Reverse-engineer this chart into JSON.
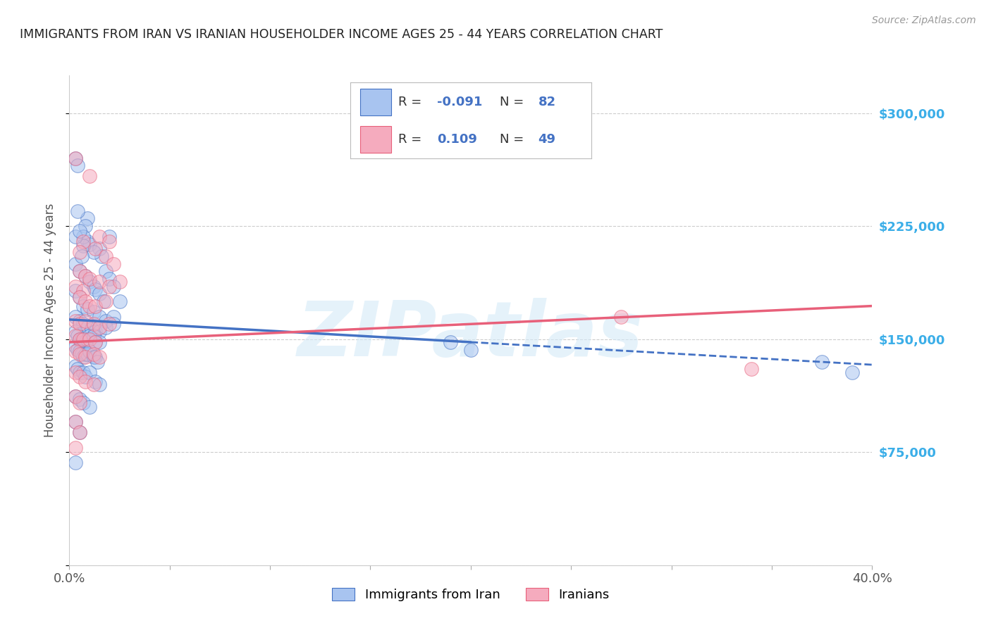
{
  "title": "IMMIGRANTS FROM IRAN VS IRANIAN HOUSEHOLDER INCOME AGES 25 - 44 YEARS CORRELATION CHART",
  "source": "Source: ZipAtlas.com",
  "ylabel": "Householder Income Ages 25 - 44 years",
  "xlim": [
    0.0,
    0.4
  ],
  "ylim": [
    0,
    325000
  ],
  "yticks": [
    0,
    75000,
    150000,
    225000,
    300000
  ],
  "ytick_labels": [
    "",
    "$75,000",
    "$150,000",
    "$225,000",
    "$300,000"
  ],
  "xticks": [
    0.0,
    0.05,
    0.1,
    0.15,
    0.2,
    0.25,
    0.3,
    0.35,
    0.4
  ],
  "color_blue": "#A8C4F0",
  "color_pink": "#F5ABBE",
  "line_color_blue": "#4472C4",
  "line_color_pink": "#E8607A",
  "right_tick_color": "#3BAEE8",
  "blue_line_solid": [
    [
      0.0,
      163000
    ],
    [
      0.2,
      148000
    ]
  ],
  "blue_line_dashed": [
    [
      0.2,
      148000
    ],
    [
      0.4,
      133000
    ]
  ],
  "pink_line": [
    [
      0.0,
      148000
    ],
    [
      0.4,
      172000
    ]
  ],
  "blue_scatter": [
    [
      0.003,
      270000
    ],
    [
      0.004,
      265000
    ],
    [
      0.009,
      230000
    ],
    [
      0.009,
      215000
    ],
    [
      0.01,
      213000
    ],
    [
      0.015,
      210000
    ],
    [
      0.02,
      218000
    ],
    [
      0.016,
      205000
    ],
    [
      0.008,
      225000
    ],
    [
      0.012,
      208000
    ],
    [
      0.018,
      195000
    ],
    [
      0.004,
      235000
    ],
    [
      0.007,
      218000
    ],
    [
      0.007,
      212000
    ],
    [
      0.003,
      218000
    ],
    [
      0.005,
      222000
    ],
    [
      0.003,
      200000
    ],
    [
      0.006,
      205000
    ],
    [
      0.005,
      195000
    ],
    [
      0.008,
      192000
    ],
    [
      0.01,
      188000
    ],
    [
      0.012,
      185000
    ],
    [
      0.013,
      183000
    ],
    [
      0.015,
      180000
    ],
    [
      0.017,
      175000
    ],
    [
      0.02,
      190000
    ],
    [
      0.022,
      185000
    ],
    [
      0.003,
      182000
    ],
    [
      0.005,
      178000
    ],
    [
      0.007,
      172000
    ],
    [
      0.009,
      170000
    ],
    [
      0.012,
      168000
    ],
    [
      0.015,
      165000
    ],
    [
      0.018,
      162000
    ],
    [
      0.022,
      165000
    ],
    [
      0.025,
      175000
    ],
    [
      0.003,
      165000
    ],
    [
      0.005,
      162000
    ],
    [
      0.007,
      160000
    ],
    [
      0.009,
      158000
    ],
    [
      0.011,
      157000
    ],
    [
      0.013,
      155000
    ],
    [
      0.015,
      155000
    ],
    [
      0.018,
      158000
    ],
    [
      0.022,
      160000
    ],
    [
      0.003,
      155000
    ],
    [
      0.004,
      152000
    ],
    [
      0.005,
      150000
    ],
    [
      0.006,
      150000
    ],
    [
      0.007,
      148000
    ],
    [
      0.008,
      148000
    ],
    [
      0.009,
      150000
    ],
    [
      0.01,
      152000
    ],
    [
      0.012,
      152000
    ],
    [
      0.013,
      148000
    ],
    [
      0.015,
      148000
    ],
    [
      0.003,
      145000
    ],
    [
      0.004,
      143000
    ],
    [
      0.005,
      142000
    ],
    [
      0.006,
      140000
    ],
    [
      0.007,
      138000
    ],
    [
      0.008,
      140000
    ],
    [
      0.009,
      140000
    ],
    [
      0.01,
      142000
    ],
    [
      0.012,
      138000
    ],
    [
      0.013,
      138000
    ],
    [
      0.014,
      135000
    ],
    [
      0.003,
      132000
    ],
    [
      0.004,
      130000
    ],
    [
      0.005,
      128000
    ],
    [
      0.007,
      128000
    ],
    [
      0.008,
      125000
    ],
    [
      0.01,
      128000
    ],
    [
      0.013,
      122000
    ],
    [
      0.015,
      120000
    ],
    [
      0.003,
      112000
    ],
    [
      0.005,
      110000
    ],
    [
      0.007,
      108000
    ],
    [
      0.01,
      105000
    ],
    [
      0.003,
      95000
    ],
    [
      0.005,
      88000
    ],
    [
      0.003,
      68000
    ],
    [
      0.19,
      148000
    ],
    [
      0.2,
      143000
    ],
    [
      0.375,
      135000
    ],
    [
      0.39,
      128000
    ]
  ],
  "pink_scatter": [
    [
      0.003,
      270000
    ],
    [
      0.01,
      258000
    ],
    [
      0.015,
      218000
    ],
    [
      0.02,
      215000
    ],
    [
      0.007,
      215000
    ],
    [
      0.013,
      210000
    ],
    [
      0.005,
      208000
    ],
    [
      0.018,
      205000
    ],
    [
      0.022,
      200000
    ],
    [
      0.005,
      195000
    ],
    [
      0.008,
      192000
    ],
    [
      0.01,
      190000
    ],
    [
      0.015,
      188000
    ],
    [
      0.003,
      185000
    ],
    [
      0.007,
      182000
    ],
    [
      0.02,
      185000
    ],
    [
      0.025,
      188000
    ],
    [
      0.005,
      178000
    ],
    [
      0.008,
      175000
    ],
    [
      0.01,
      172000
    ],
    [
      0.013,
      172000
    ],
    [
      0.018,
      175000
    ],
    [
      0.003,
      162000
    ],
    [
      0.005,
      160000
    ],
    [
      0.008,
      162000
    ],
    [
      0.012,
      160000
    ],
    [
      0.015,
      158000
    ],
    [
      0.02,
      160000
    ],
    [
      0.003,
      152000
    ],
    [
      0.005,
      150000
    ],
    [
      0.007,
      150000
    ],
    [
      0.01,
      150000
    ],
    [
      0.013,
      148000
    ],
    [
      0.003,
      142000
    ],
    [
      0.005,
      140000
    ],
    [
      0.008,
      138000
    ],
    [
      0.012,
      140000
    ],
    [
      0.015,
      138000
    ],
    [
      0.003,
      128000
    ],
    [
      0.005,
      125000
    ],
    [
      0.008,
      122000
    ],
    [
      0.012,
      120000
    ],
    [
      0.003,
      112000
    ],
    [
      0.005,
      108000
    ],
    [
      0.003,
      95000
    ],
    [
      0.005,
      88000
    ],
    [
      0.003,
      78000
    ],
    [
      0.275,
      165000
    ],
    [
      0.34,
      130000
    ]
  ]
}
